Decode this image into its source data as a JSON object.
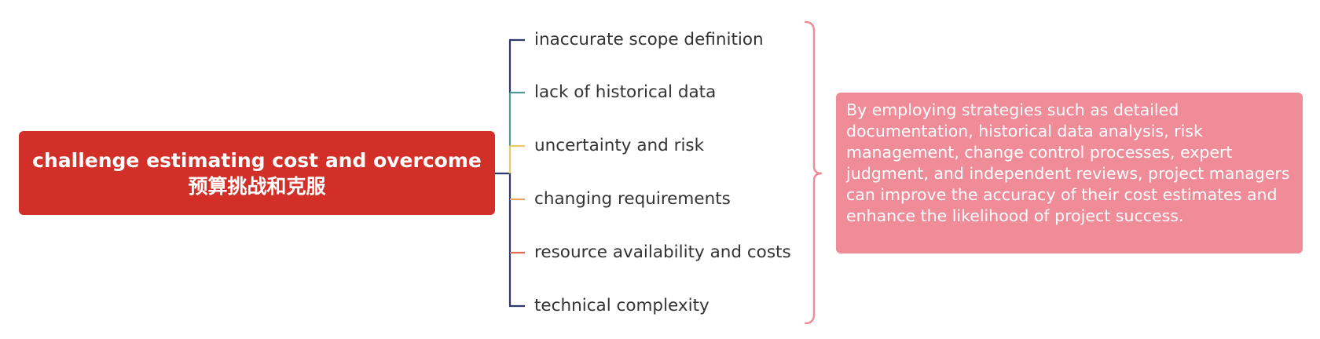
{
  "root": {
    "title_en": "challenge estimating cost and overcome",
    "title_zh": "预算挑战和克服"
  },
  "branches": [
    {
      "label": "inaccurate scope definition",
      "color": "#2b3a6b"
    },
    {
      "label": "lack of historical data",
      "color": "#4e9a94"
    },
    {
      "label": "uncertainty and risk",
      "color": "#e8c96a"
    },
    {
      "label": "changing requirements",
      "color": "#e8a45e"
    },
    {
      "label": "resource availability and costs",
      "color": "#e06a50"
    },
    {
      "label": "technical complexity",
      "color": "#2b3a6b"
    }
  ],
  "summary": {
    "text": "By employing strategies such as detailed documentation, historical data analysis, risk management, change control processes, expert judgment, and independent reviews, project managers can improve the accuracy of their cost estimates and enhance the likelihood of project success."
  },
  "colors": {
    "root_fill": "#d12f27",
    "trunk": "#2b3a6b",
    "bracket": "#f08b98",
    "summary_fill": "#f08b98",
    "label_text": "#333333"
  }
}
